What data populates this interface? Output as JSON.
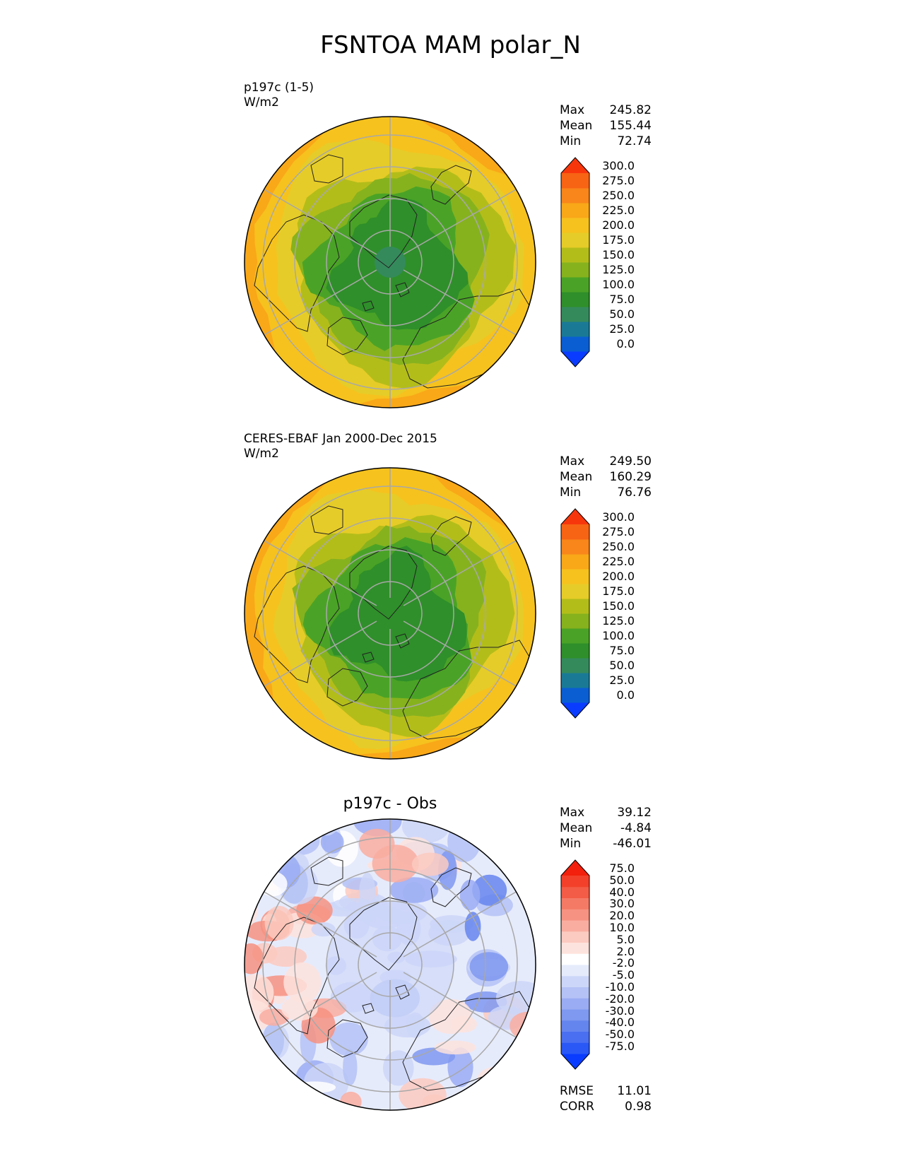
{
  "title": "FSNTOA MAM polar_N",
  "panels": [
    {
      "id": "model",
      "title_lines": [
        "p197c (1-5)",
        "W/m2"
      ],
      "stats": [
        [
          "Max",
          "245.82"
        ],
        [
          "Mean",
          "155.44"
        ],
        [
          "Min",
          "72.74"
        ]
      ]
    },
    {
      "id": "obs",
      "title_lines": [
        "CERES-EBAF Jan 2000-Dec 2015",
        "W/m2"
      ],
      "stats": [
        [
          "Max",
          "249.50"
        ],
        [
          "Mean",
          "160.29"
        ],
        [
          "Min",
          "76.76"
        ]
      ]
    },
    {
      "id": "diff",
      "title": "p197c - Obs",
      "stats": [
        [
          "Max",
          "39.12"
        ],
        [
          "Mean",
          "-4.84"
        ],
        [
          "Min",
          "-46.01"
        ]
      ],
      "footer": [
        [
          "RMSE",
          "11.01"
        ],
        [
          "CORR",
          "0.98"
        ]
      ]
    }
  ],
  "colorbars": {
    "absolute": {
      "levels": [
        "0.0",
        "25.0",
        "50.0",
        "75.0",
        "100.0",
        "125.0",
        "150.0",
        "175.0",
        "200.0",
        "225.0",
        "250.0",
        "275.0",
        "300.0"
      ],
      "colors": [
        "#0a3cff",
        "#0a5ed2",
        "#1a7a96",
        "#358a5c",
        "#2f8f2a",
        "#4aa326",
        "#86b21e",
        "#b3bd1a",
        "#e6cc28",
        "#f6c21e",
        "#f9a818",
        "#f8861a",
        "#f76414",
        "#f8360c"
      ]
    },
    "difference": {
      "levels": [
        "-75.0",
        "-50.0",
        "-40.0",
        "-30.0",
        "-20.0",
        "-10.0",
        "-5.0",
        "-2.0",
        "2.0",
        "5.0",
        "10.0",
        "20.0",
        "30.0",
        "40.0",
        "50.0",
        "75.0"
      ],
      "colors": [
        "#0a3cff",
        "#2a58f6",
        "#4a6ff0",
        "#6585ee",
        "#7f98f0",
        "#9aacf3",
        "#b4c2f6",
        "#ccd6f8",
        "#e6ebfb",
        "#ffffff",
        "#fde3dd",
        "#fbcac0",
        "#f9ada0",
        "#f69281",
        "#f47a66",
        "#f35c46",
        "#f2402a",
        "#f2200c"
      ]
    }
  },
  "chart_data": [
    {
      "type": "heatmap",
      "title": "p197c (1-5)",
      "units": "W/m2",
      "projection": "north polar stereographic",
      "colorbar_levels": [
        0,
        25,
        50,
        75,
        100,
        125,
        150,
        175,
        200,
        225,
        250,
        275,
        300
      ],
      "max": 245.82,
      "mean": 155.44,
      "min": 72.74,
      "pattern": "low values (~75-125) over central Arctic, increasing to ~200-250 toward lower latitudes"
    },
    {
      "type": "heatmap",
      "title": "CERES-EBAF Jan 2000-Dec 2015",
      "units": "W/m2",
      "projection": "north polar stereographic",
      "colorbar_levels": [
        0,
        25,
        50,
        75,
        100,
        125,
        150,
        175,
        200,
        225,
        250,
        275,
        300
      ],
      "max": 249.5,
      "mean": 160.29,
      "min": 76.76
    },
    {
      "type": "heatmap",
      "title": "p197c - Obs",
      "projection": "north polar stereographic",
      "colorbar_levels": [
        -75,
        -50,
        -40,
        -30,
        -20,
        -10,
        -5,
        -2,
        2,
        5,
        10,
        20,
        30,
        40,
        50,
        75
      ],
      "max": 39.12,
      "mean": -4.84,
      "min": -46.01,
      "rmse": 11.01,
      "corr": 0.98
    }
  ]
}
